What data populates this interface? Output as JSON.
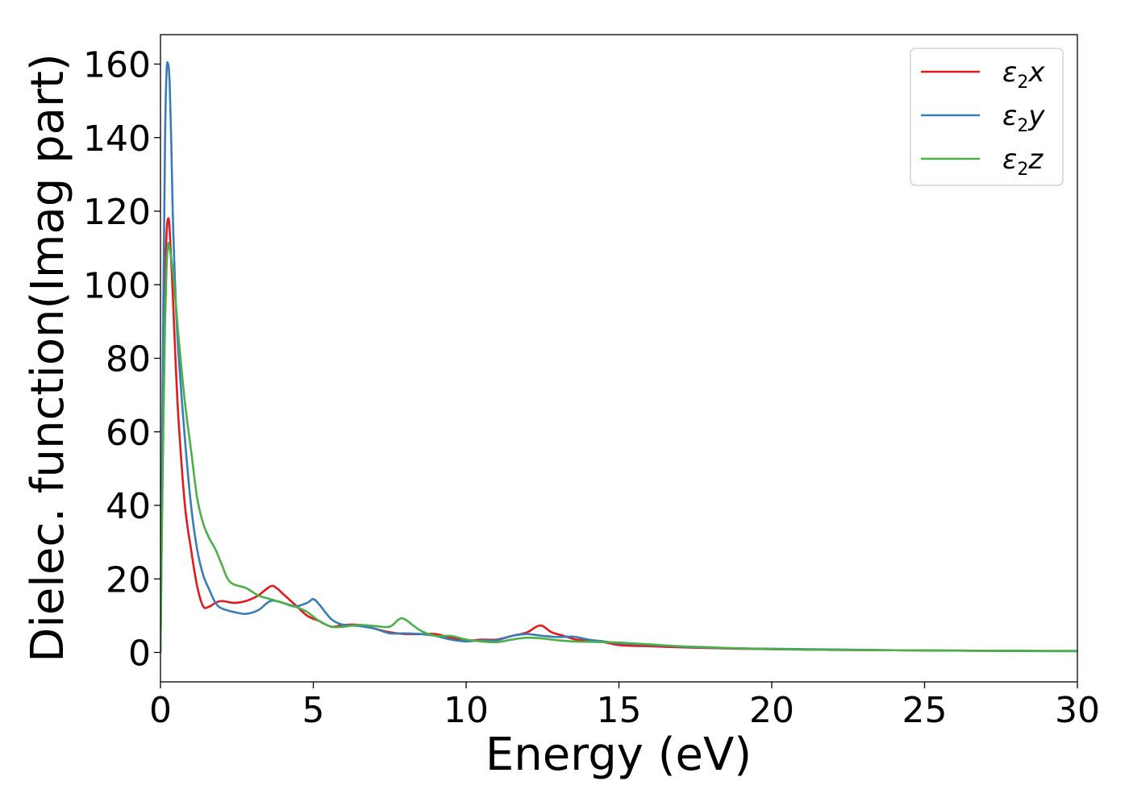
{
  "chart_data": {
    "type": "line",
    "title": "",
    "xlabel": "Energy (eV)",
    "ylabel": "Dielec. function(Imag part)",
    "xlim": [
      0,
      30
    ],
    "ylim": [
      -8,
      168
    ],
    "xticks": [
      "0",
      "5",
      "10",
      "15",
      "20",
      "25",
      "30"
    ],
    "yticks": [
      "0",
      "20",
      "40",
      "60",
      "80",
      "100",
      "120",
      "140",
      "160"
    ],
    "grid": false,
    "legend_position": "top-right",
    "series": [
      {
        "name": "ε2x",
        "legend": {
          "base": "ε",
          "sub": "2",
          "suffix": "x"
        },
        "color": "#e31a1c",
        "x": [
          0,
          0.05,
          0.1,
          0.15,
          0.2,
          0.25,
          0.3,
          0.4,
          0.5,
          0.6,
          0.8,
          1.0,
          1.2,
          1.4,
          1.6,
          1.8,
          2.0,
          2.4,
          2.8,
          3.2,
          3.6,
          3.8,
          4.0,
          4.4,
          4.8,
          5.2,
          5.6,
          6.0,
          6.5,
          7.0,
          7.5,
          8.0,
          8.5,
          9.0,
          9.5,
          10.0,
          10.5,
          11.0,
          11.5,
          12.0,
          12.3,
          12.5,
          12.8,
          13.2,
          13.6,
          14.0,
          14.5,
          15.0,
          15.5,
          16.0,
          17.0,
          18.0,
          19.0,
          20.0,
          22.0,
          24.0,
          26.0,
          28.0,
          30.0
        ],
        "y": [
          0,
          40,
          75,
          100,
          114,
          118,
          115,
          98,
          78,
          62,
          40,
          28,
          18,
          12.5,
          12.5,
          13.5,
          14,
          13.5,
          14,
          15.5,
          18,
          17.5,
          16,
          13,
          10,
          8.5,
          7,
          7.5,
          7.5,
          6.5,
          5.5,
          5,
          5,
          5,
          4,
          3.2,
          3.5,
          3.5,
          4.5,
          5.5,
          7,
          7.2,
          5.5,
          4.5,
          3.5,
          3.3,
          2.8,
          2,
          1.8,
          1.7,
          1.4,
          1.2,
          1.0,
          0.9,
          0.7,
          0.6,
          0.5,
          0.4,
          0.4
        ]
      },
      {
        "name": "ε2y",
        "legend": {
          "base": "ε",
          "sub": "2",
          "suffix": "y"
        },
        "color": "#377eb8",
        "x": [
          0,
          0.05,
          0.1,
          0.15,
          0.2,
          0.25,
          0.3,
          0.35,
          0.4,
          0.5,
          0.6,
          0.8,
          1.0,
          1.2,
          1.4,
          1.6,
          1.8,
          2.0,
          2.4,
          2.8,
          3.2,
          3.6,
          4.0,
          4.4,
          4.8,
          5.0,
          5.2,
          5.6,
          6.0,
          6.5,
          7.0,
          7.5,
          8.0,
          8.5,
          9.0,
          9.5,
          10.0,
          10.5,
          11.0,
          11.5,
          12.0,
          12.5,
          13.0,
          13.5,
          14.0,
          14.5,
          15.0,
          16.0,
          17.0,
          18.0,
          19.0,
          20.0,
          22.0,
          24.0,
          26.0,
          28.0,
          30.0
        ],
        "y": [
          0,
          50,
          100,
          140,
          158,
          160,
          155,
          140,
          120,
          95,
          80,
          58,
          40,
          28,
          21,
          17,
          13.5,
          12,
          11,
          10.5,
          11.5,
          14,
          13.5,
          12.5,
          13.5,
          14.5,
          13,
          9,
          7.5,
          7.2,
          6.5,
          5.2,
          5.2,
          5,
          4.5,
          3.5,
          3,
          3.3,
          3.3,
          4.5,
          5,
          4.5,
          4.2,
          4.3,
          3.5,
          3,
          2.5,
          2.1,
          1.6,
          1.3,
          1.1,
          1.0,
          0.8,
          0.6,
          0.5,
          0.4,
          0.35
        ]
      },
      {
        "name": "ε2z",
        "legend": {
          "base": "ε",
          "sub": "2",
          "suffix": "z"
        },
        "color": "#4daf4a",
        "x": [
          0,
          0.05,
          0.1,
          0.15,
          0.2,
          0.25,
          0.3,
          0.4,
          0.5,
          0.6,
          0.8,
          1.0,
          1.2,
          1.4,
          1.6,
          1.8,
          2.0,
          2.2,
          2.4,
          2.8,
          3.2,
          3.6,
          4.0,
          4.4,
          4.8,
          5.2,
          5.6,
          6.0,
          6.5,
          7.0,
          7.5,
          7.8,
          8.0,
          8.5,
          9.0,
          9.5,
          10.0,
          10.5,
          11.0,
          11.5,
          12.0,
          12.5,
          13.0,
          13.5,
          14.0,
          14.5,
          15.0,
          16.0,
          17.0,
          18.0,
          19.0,
          20.0,
          22.0,
          24.0,
          26.0,
          28.0,
          30.0
        ],
        "y": [
          0,
          35,
          65,
          90,
          105,
          111,
          110,
          104,
          95,
          85,
          68,
          55,
          42,
          35,
          31,
          28,
          24,
          20,
          18.5,
          17.5,
          15.5,
          14.5,
          13.5,
          12.5,
          11,
          8.5,
          7,
          7,
          7.5,
          7.2,
          7,
          9,
          9,
          6,
          4.5,
          4.5,
          3.5,
          3,
          2.8,
          3.5,
          4,
          3.8,
          3.3,
          3,
          2.9,
          2.8,
          2.7,
          2.2,
          1.7,
          1.4,
          1.1,
          0.9,
          0.7,
          0.6,
          0.5,
          0.45,
          0.4
        ]
      }
    ]
  }
}
